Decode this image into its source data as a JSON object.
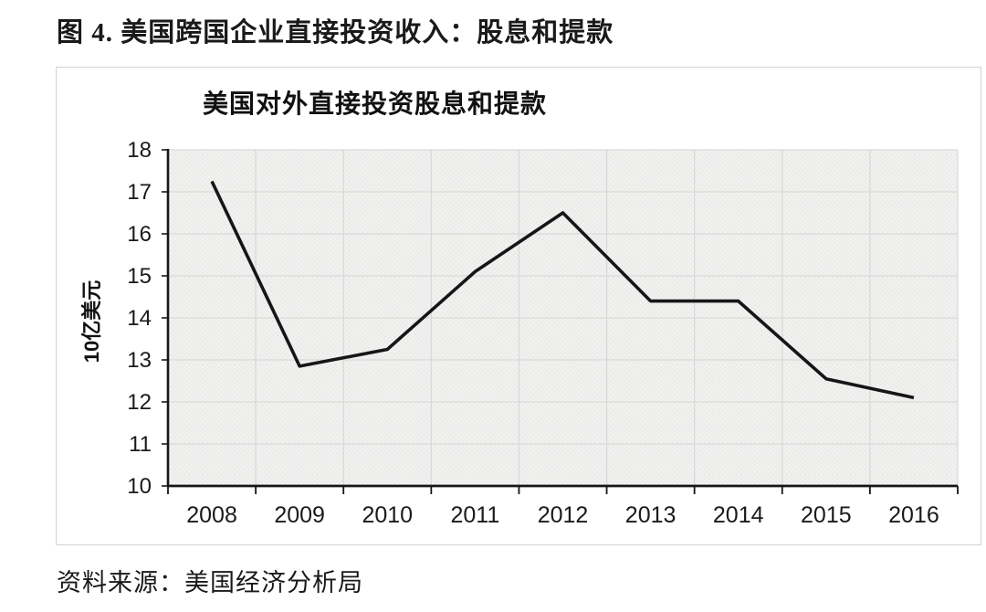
{
  "page": {
    "figure_title": "图 4. 美国跨国企业直接投资收入：股息和提款",
    "source": "资料来源：美国经济分析局"
  },
  "chart_data": {
    "type": "line",
    "title": "美国对外直接投资股息和提款",
    "xlabel": "",
    "ylabel": "10亿美元",
    "categories": [
      "2008",
      "2009",
      "2010",
      "2011",
      "2012",
      "2013",
      "2014",
      "2015",
      "2016"
    ],
    "values": [
      17.25,
      12.85,
      13.25,
      15.1,
      16.5,
      14.4,
      14.4,
      12.55,
      12.1
    ],
    "ylim": [
      10,
      18
    ],
    "yticks": [
      10,
      11,
      12,
      13,
      14,
      15,
      16,
      17,
      18
    ],
    "grid": true,
    "legend": "none",
    "line_color": "#161616",
    "axis_color": "#161616",
    "grid_color": "#d9d9d9",
    "plot_bg": "#f3f3f2",
    "hatch_color": "#e9e9e7"
  }
}
